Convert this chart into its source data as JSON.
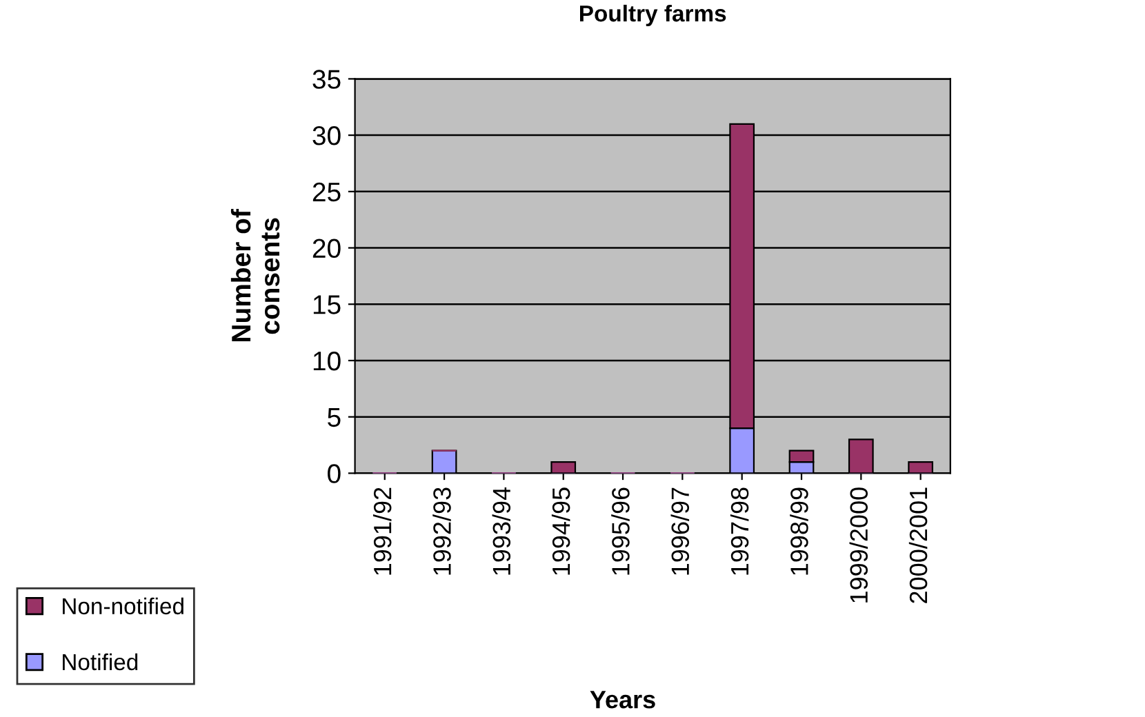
{
  "chart_data": {
    "type": "bar",
    "title": "Poultry farms",
    "xlabel": "Years",
    "ylabel": "Number of\nconsents",
    "categories": [
      "1991/92",
      "1992/93",
      "1993/94",
      "1994/95",
      "1995/96",
      "1996/97",
      "1997/98",
      "1998/99",
      "1999/2000",
      "2000/2001"
    ],
    "stacked": true,
    "series": [
      {
        "name": "Notified",
        "color": "#9999ff",
        "values": [
          0,
          2,
          0,
          0,
          0,
          0,
          4,
          1,
          0,
          0
        ]
      },
      {
        "name": "Non-notified",
        "color": "#993366",
        "values": [
          0,
          0,
          0,
          1,
          0,
          0,
          27,
          1,
          3,
          1
        ]
      }
    ],
    "ylim": [
      0,
      35
    ],
    "yticks": [
      0,
      5,
      10,
      15,
      20,
      25,
      30,
      35
    ],
    "grid": "y",
    "legend": "bottom left"
  }
}
